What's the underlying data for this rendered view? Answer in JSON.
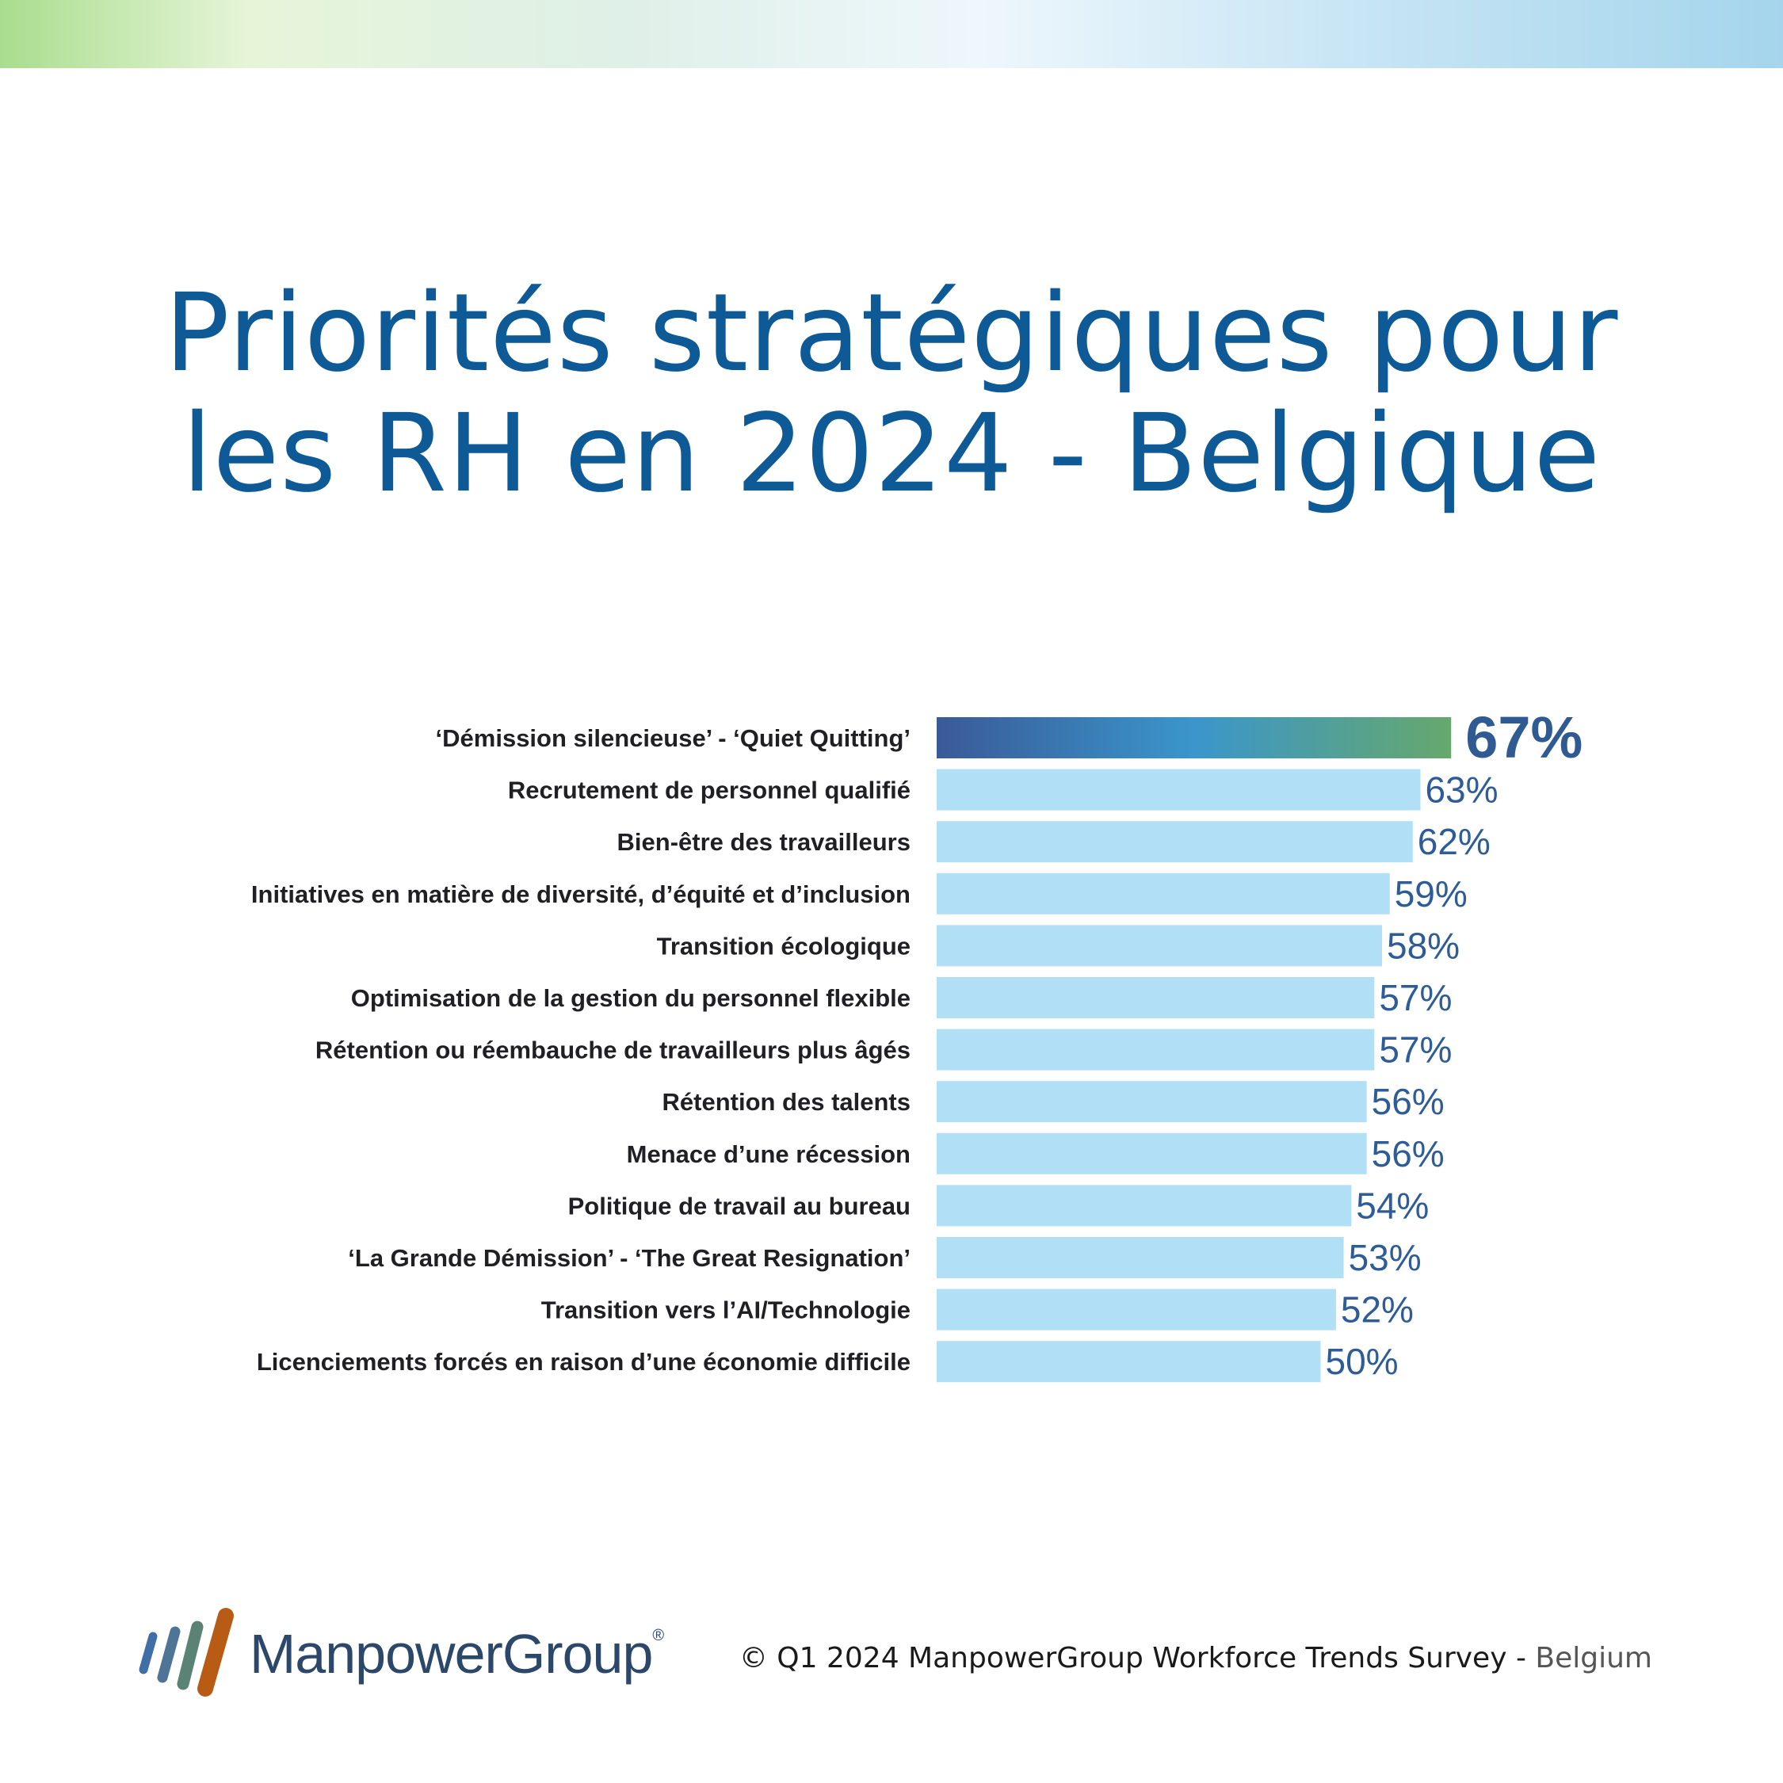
{
  "title_lines": [
    "Priorités stratégiques pour",
    "les RH en 2024 - Belgique"
  ],
  "chart_data": {
    "type": "bar",
    "orientation": "horizontal",
    "categories": [
      "‘Démission silencieuse’ - ‘Quiet Quitting’",
      "Recrutement de personnel qualifié",
      "Bien-être des travailleurs",
      "Initiatives en matière de diversité, d’équité et d’inclusion",
      "Transition écologique",
      "Optimisation de la gestion du personnel flexible",
      "Rétention ou réembauche de travailleurs plus âgés",
      "Rétention des talents",
      "Menace d’une récession",
      "Politique de travail au bureau",
      "‘La Grande Démission’ - ‘The  Great Resignation’",
      "Transition vers l’AI/Technologie",
      "Licenciements forcés en raison d’une économie difficile"
    ],
    "values": [
      67,
      63,
      62,
      59,
      58,
      57,
      57,
      56,
      56,
      54,
      53,
      52,
      50
    ],
    "value_labels": [
      "67%",
      "63%",
      "62%",
      "59%",
      "58%",
      "57%",
      "57%",
      "56%",
      "56%",
      "54%",
      "53%",
      "52%",
      "50%"
    ],
    "colors": {
      "highlight_gradient": [
        "#3a5a98",
        "#3a96cc",
        "#66a86c"
      ],
      "bar": "#b0dff6",
      "value_text": "#2e5c97"
    },
    "xlim": [
      0,
      100
    ]
  },
  "logo": {
    "text": "ManpowerGroup",
    "registered": "®"
  },
  "source": {
    "main": "© Q1 2024 ManpowerGroup Workforce Trends Survey",
    "sep": " - ",
    "region": "Belgium"
  }
}
